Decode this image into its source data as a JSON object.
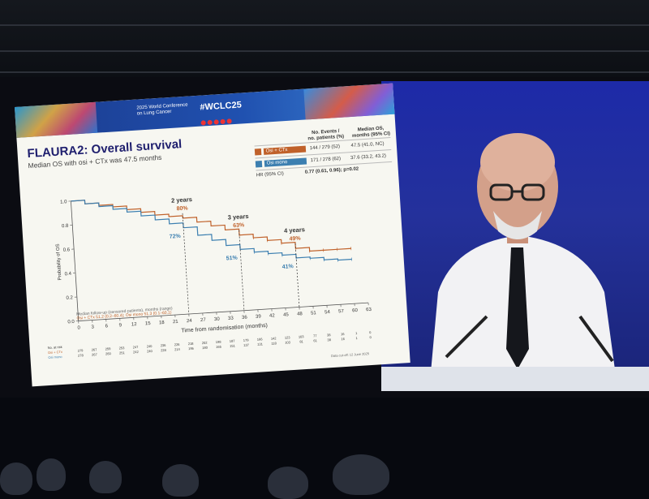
{
  "scene": {
    "description_colors": {
      "speaker_panel": "#2230a0",
      "slide_bg": "#f7f7f1"
    }
  },
  "slide": {
    "banner": {
      "conference_line1": "2025 World Conference",
      "conference_line2": "on Lung Cancer",
      "hashtag": "#WCLC25"
    },
    "title": "FLAURA2: Overall survival",
    "subtitle": "Median OS with osi + CTx was 47.5 months",
    "legend": {
      "col1_header": "No. Events /\nno. patients (%)",
      "col2_header": "Median OS,\nmonths (95% CI)",
      "rows": [
        {
          "label": "Osi + CTx",
          "color": "#c0612a",
          "events": "144 / 279 (52)",
          "median": "47.5 (41.0, NC)"
        },
        {
          "label": "Osi mono",
          "color": "#3c7fb0",
          "events": "171 / 278 (62)",
          "median": "37.6 (33.2, 43.2)"
        }
      ],
      "hr_label": "HR (95% CI)",
      "hr_value": "0.77 (0.61, 0.96); p=0.02"
    },
    "footnote_left": "Median follow-up (censored patients), months (range)",
    "footnote_left2": "Osi + CTx 51.2 (0.2–60.4); Osi mono 51.3 (0.1–60.1)",
    "data_cutoff": "Data cut-off: 12 June 2025"
  },
  "chart_data": {
    "type": "line",
    "xlabel": "Time from randomisation (months)",
    "ylabel": "Probability of OS",
    "xlim": [
      0,
      63
    ],
    "ylim": [
      0,
      1.0
    ],
    "x_ticks": [
      0,
      3,
      6,
      9,
      12,
      15,
      18,
      21,
      24,
      27,
      30,
      33,
      36,
      39,
      42,
      45,
      48,
      51,
      54,
      57,
      60,
      63
    ],
    "y_ticks": [
      0.0,
      0.2,
      0.4,
      0.6,
      0.8,
      1.0
    ],
    "series": [
      {
        "name": "Osi + CTx",
        "color": "#c0612a",
        "x": [
          0,
          3,
          6,
          9,
          12,
          15,
          18,
          21,
          24,
          27,
          30,
          33,
          36,
          39,
          42,
          45,
          48,
          51,
          54,
          57,
          60
        ],
        "values": [
          1.0,
          0.97,
          0.95,
          0.93,
          0.9,
          0.87,
          0.84,
          0.82,
          0.8,
          0.76,
          0.72,
          0.68,
          0.63,
          0.6,
          0.57,
          0.54,
          0.49,
          0.46,
          0.46,
          0.46,
          0.46
        ]
      },
      {
        "name": "Osi mono",
        "color": "#3c7fb0",
        "x": [
          0,
          3,
          6,
          9,
          12,
          15,
          18,
          21,
          24,
          27,
          30,
          33,
          36,
          39,
          42,
          45,
          48,
          51,
          54,
          57,
          60
        ],
        "values": [
          1.0,
          0.97,
          0.94,
          0.91,
          0.88,
          0.84,
          0.8,
          0.76,
          0.72,
          0.65,
          0.6,
          0.55,
          0.51,
          0.48,
          0.46,
          0.44,
          0.41,
          0.4,
          0.38,
          0.37,
          0.37
        ]
      }
    ],
    "annotations": [
      {
        "label": "2 years",
        "x": 24,
        "osi_ctx": "80%",
        "osi_mono": "72%"
      },
      {
        "label": "3 years",
        "x": 36,
        "osi_ctx": "63%",
        "osi_mono": "51%"
      },
      {
        "label": "4 years",
        "x": 48,
        "osi_ctx": "49%",
        "osi_mono": "41%"
      }
    ],
    "at_risk_label": "No. at risk",
    "at_risk": [
      {
        "name": "Osi + CTx",
        "values": [
          279,
          267,
          259,
          253,
          247,
          240,
          236,
          226,
          218,
          202,
          198,
          187,
          179,
          166,
          142,
          123,
          103,
          77,
          38,
          16,
          1,
          0
        ]
      },
      {
        "name": "Osi mono",
        "values": [
          278,
          267,
          260,
          251,
          242,
          240,
          228,
          214,
          195,
          180,
          165,
          151,
          137,
          131,
          118,
          103,
          81,
          61,
          38,
          16,
          1,
          0
        ]
      }
    ]
  }
}
